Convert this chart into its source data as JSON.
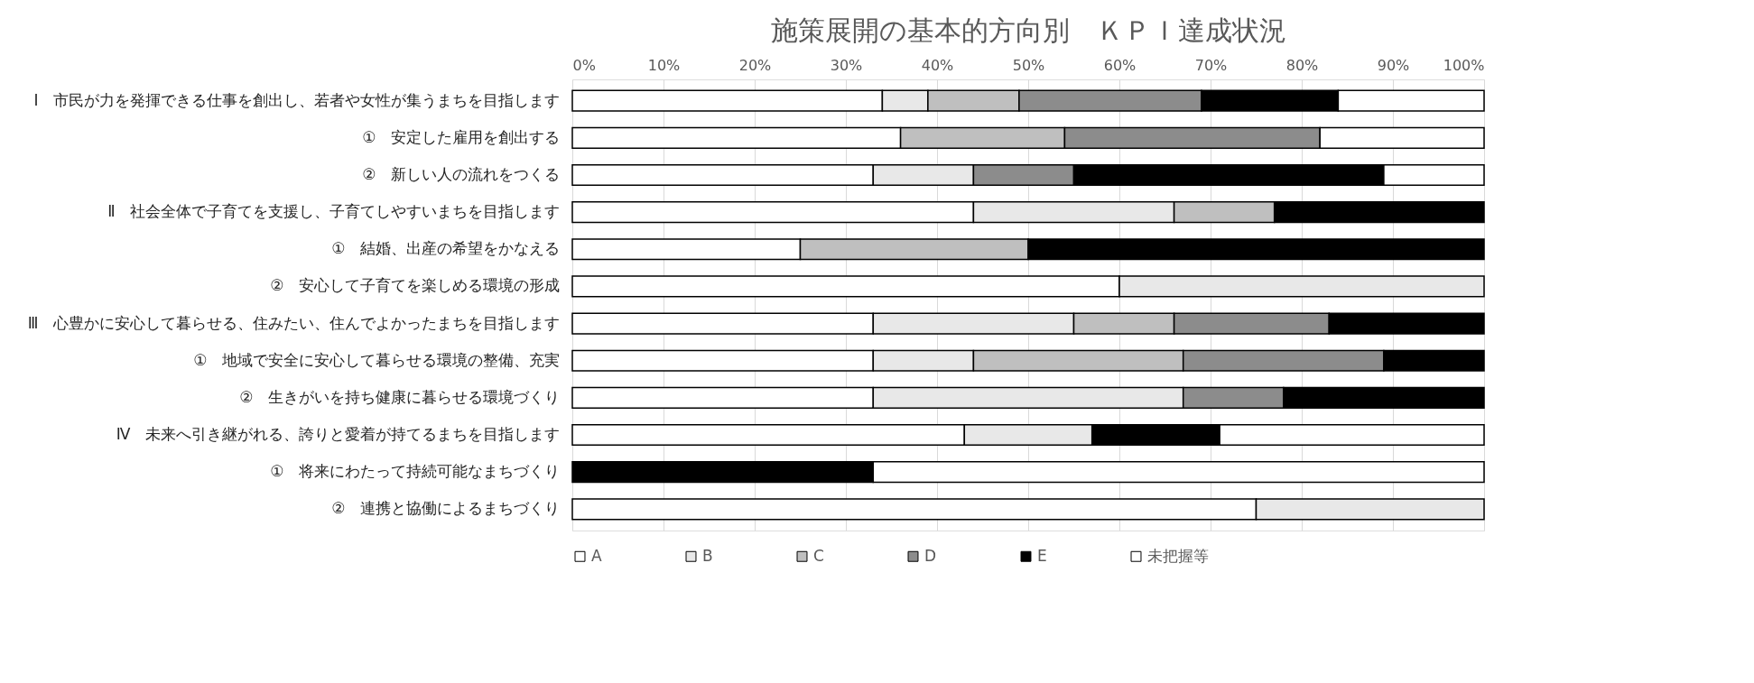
{
  "chart_data": {
    "type": "bar",
    "orientation": "horizontal",
    "stacked": true,
    "title": "施策展開の基本的方向別　ＫＰＩ達成状況",
    "categories": [
      "Ⅰ　市民が力を発揮できる仕事を創出し、若者や女性が集うまちを目指します",
      "　①　安定した雇用を創出する",
      "　②　新しい人の流れをつくる",
      "Ⅱ　社会全体で子育てを支援し、子育てしやすいまちを目指します",
      "　①　結婚、出産の希望をかなえる",
      "　②　安心して子育てを楽しめる環境の形成",
      "Ⅲ　心豊かに安心して暮らせる、住みたい、住んでよかったまちを目指します",
      "　①　地域で安全に安心して暮らせる環境の整備、充実",
      "　②　生きがいを持ち健康に暮らせる環境づくり",
      "Ⅳ　未来へ引き継がれる、誇りと愛着が持てるまちを目指します",
      "　①　将来にわたって持続可能なまちづくり",
      "　②　連携と協働によるまちづくり"
    ],
    "series": [
      {
        "name": "A",
        "color": "#ffffff",
        "values": [
          34,
          36,
          33,
          44,
          25,
          60,
          33,
          33,
          33,
          43,
          null,
          75
        ]
      },
      {
        "name": "B",
        "color": "#e8e8e8",
        "values": [
          5,
          null,
          11,
          22,
          null,
          40,
          22,
          11,
          34,
          14,
          null,
          25
        ]
      },
      {
        "name": "C",
        "color": "#bfbfbf",
        "values": [
          10,
          18,
          null,
          11,
          25,
          null,
          11,
          23,
          null,
          null,
          null,
          null
        ]
      },
      {
        "name": "D",
        "color": "#8c8c8c",
        "values": [
          20,
          28,
          11,
          null,
          null,
          null,
          17,
          22,
          11,
          null,
          null,
          null
        ]
      },
      {
        "name": "E",
        "color": "#000000",
        "values": [
          15,
          null,
          34,
          23,
          50,
          null,
          17,
          11,
          22,
          14,
          33,
          null
        ]
      },
      {
        "name": "未把握等",
        "color": "#ffffff",
        "values": [
          16,
          18,
          11,
          null,
          null,
          null,
          null,
          null,
          null,
          29,
          67,
          null
        ]
      }
    ],
    "xlim": [
      0,
      100
    ],
    "xticks": [
      {
        "value": 0,
        "label": "0%"
      },
      {
        "value": 10,
        "label": "10%"
      },
      {
        "value": 20,
        "label": "20%"
      },
      {
        "value": 30,
        "label": "30%"
      },
      {
        "value": 40,
        "label": "40%"
      },
      {
        "value": 50,
        "label": "50%"
      },
      {
        "value": 60,
        "label": "60%"
      },
      {
        "value": 70,
        "label": "70%"
      },
      {
        "value": 80,
        "label": "80%"
      },
      {
        "value": 90,
        "label": "90%"
      },
      {
        "value": 100,
        "label": "100%"
      }
    ],
    "grid": "x",
    "legend": "bottom"
  }
}
